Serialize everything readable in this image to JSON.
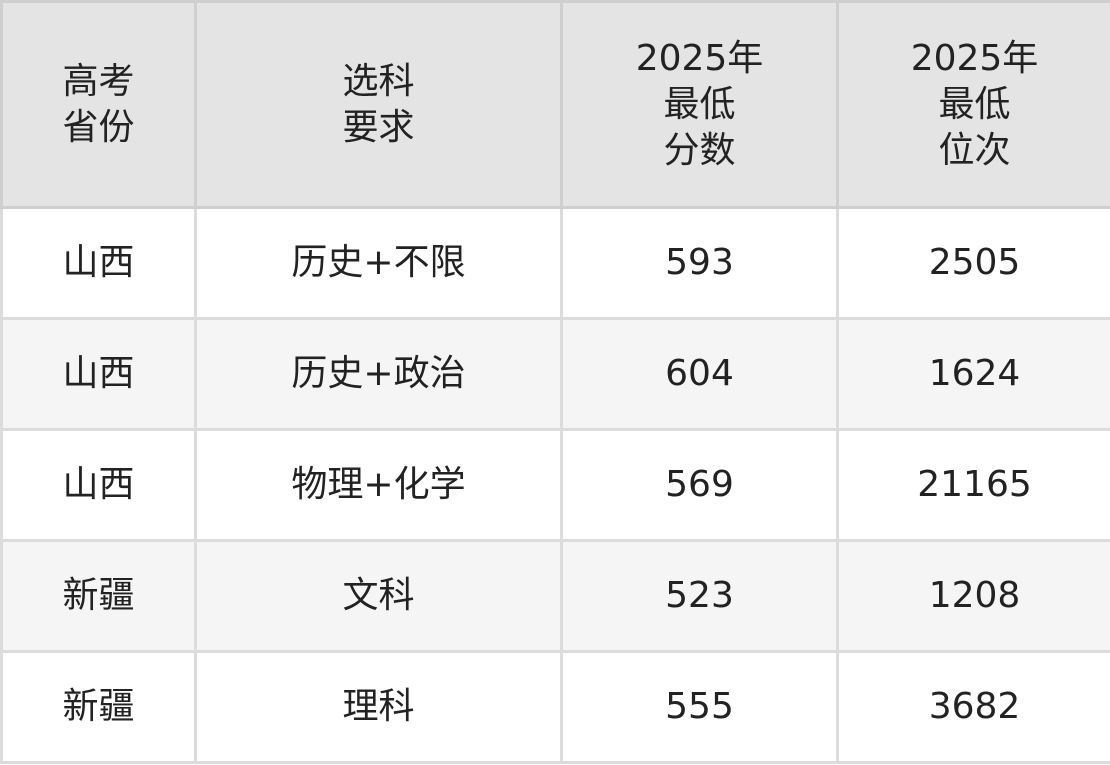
{
  "headers": [
    [
      "高考",
      "省份"
    ],
    [
      "选科",
      "要求"
    ],
    [
      "2025年",
      "最低",
      "分数"
    ],
    [
      "2025年",
      "最低",
      "位次"
    ]
  ],
  "rows": [
    [
      "山西",
      "历史+不限",
      "593",
      "2505"
    ],
    [
      "山西",
      "历史+政治",
      "604",
      "1624"
    ],
    [
      "山西",
      "物理+化学",
      "569",
      "21165"
    ],
    [
      "新疆",
      "文科",
      "523",
      "1208"
    ],
    [
      "新疆",
      "理科",
      "555",
      "3682"
    ]
  ]
}
